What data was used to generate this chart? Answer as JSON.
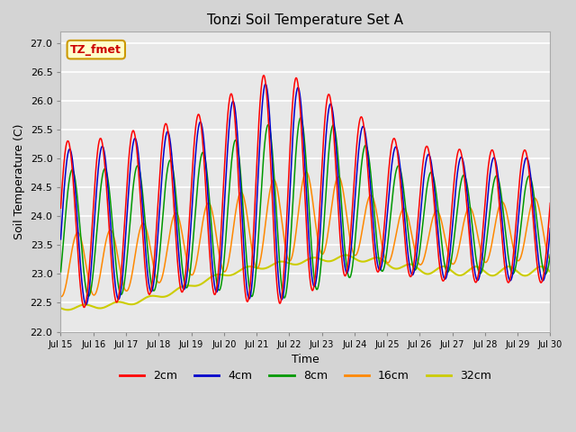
{
  "title": "Tonzi Soil Temperature Set A",
  "xlabel": "Time",
  "ylabel": "Soil Temperature (C)",
  "ylim": [
    22.0,
    27.2
  ],
  "yticks": [
    22.0,
    22.5,
    23.0,
    23.5,
    24.0,
    24.5,
    25.0,
    25.5,
    26.0,
    26.5,
    27.0
  ],
  "xtick_labels": [
    "Jul 15",
    "Jul 16",
    "Jul 17",
    "Jul 18",
    "Jul 19",
    "Jul 20",
    "Jul 21",
    "Jul 22",
    "Jul 23",
    "Jul 24",
    "Jul 25",
    "Jul 26",
    "Jul 27",
    "Jul 28",
    "Jul 29",
    "Jul 30"
  ],
  "annotation_text": "TZ_fmet",
  "annotation_bg": "#ffffcc",
  "annotation_border": "#cc9900",
  "annotation_text_color": "#cc0000",
  "line_colors": {
    "2cm": "#ff0000",
    "4cm": "#0000cc",
    "8cm": "#009900",
    "16cm": "#ff8800",
    "32cm": "#cccc00"
  },
  "legend_labels": [
    "2cm",
    "4cm",
    "8cm",
    "16cm",
    "32cm"
  ],
  "fig_bg_color": "#d4d4d4",
  "plot_bg_color": "#e8e8e8",
  "grid_color": "#ffffff"
}
